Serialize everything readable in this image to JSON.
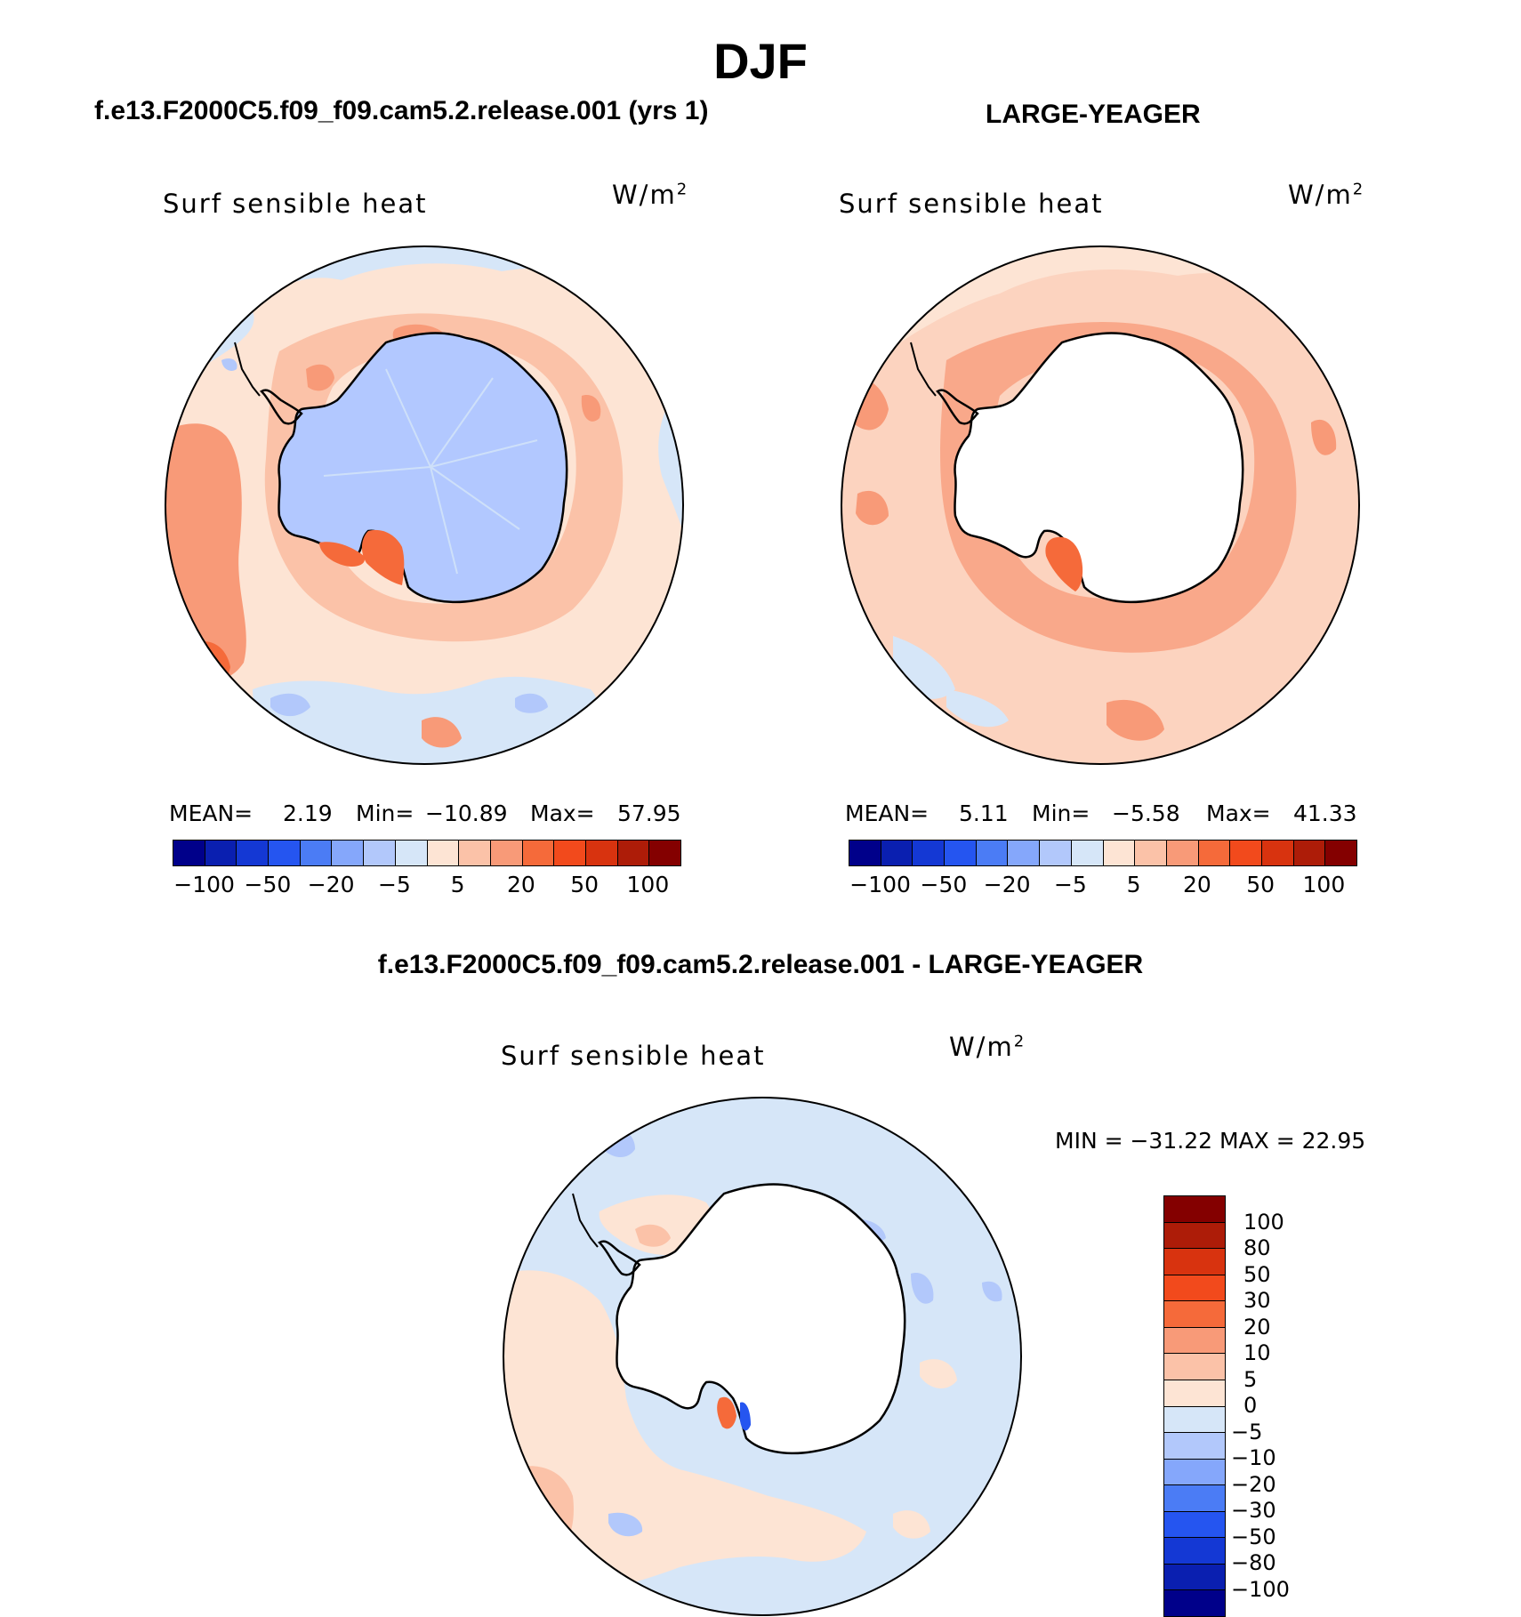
{
  "figure": {
    "title": "DJF",
    "bottom_title": "f.e13.F2000C5.f09_f09.cam5.2.release.001 - LARGE-YEAGER"
  },
  "panels": [
    {
      "title": "f.e13.F2000C5.f09_f09.cam5.2.release.001 (yrs 1)",
      "variable": "Surf sensible heat",
      "units": "W/m",
      "units_sup": "2",
      "mean_label": "MEAN=",
      "mean": "2.19",
      "min_label": "Min=",
      "min": "−10.89",
      "max_label": "Max=",
      "max": "57.95",
      "land_color": "#b2c8ff",
      "ocean_base": "#fde4d4"
    },
    {
      "title": "LARGE-YEAGER",
      "variable": "Surf sensible heat",
      "units": "W/m",
      "units_sup": "2",
      "mean_label": "MEAN=",
      "mean": "5.11",
      "min_label": "Min=",
      "min": "−5.58",
      "max_label": "Max=",
      "max": "41.33",
      "land_color": "#ffffff",
      "ocean_base": "#fcd3bf"
    },
    {
      "title": "",
      "variable": "Surf sensible heat",
      "units": "W/m",
      "units_sup": "2",
      "minmax_text": "MIN = −31.22 MAX =   22.95",
      "land_color": "#ffffff",
      "ocean_base": "#d4e6fb"
    }
  ],
  "colorbar_h": {
    "colors": [
      "#00008a",
      "#0a1fb0",
      "#1438d4",
      "#2555f0",
      "#4b7cf5",
      "#85a7fb",
      "#b2c8fb",
      "#d6e6f8",
      "#fde4d4",
      "#fbc2a8",
      "#f89a78",
      "#f56a3a",
      "#f24a1c",
      "#d8330f",
      "#ad1c08",
      "#840000"
    ],
    "labels": [
      "−100",
      "−50",
      "−20",
      "−5",
      "5",
      "20",
      "50",
      "100"
    ]
  },
  "colorbar_v": {
    "colors": [
      "#840000",
      "#ad1c08",
      "#d8330f",
      "#f24a1c",
      "#f56a3a",
      "#f89a78",
      "#fbc2a8",
      "#fde4d4",
      "#d6e6f8",
      "#b2c8fb",
      "#85a7fb",
      "#4b7cf5",
      "#2555f0",
      "#1438d4",
      "#0a1fb0",
      "#00008a"
    ],
    "labels": [
      "100",
      "80",
      "50",
      "30",
      "20",
      "10",
      "5",
      "0",
      "−5",
      "−10",
      "−20",
      "−30",
      "−50",
      "−80",
      "−100"
    ]
  }
}
